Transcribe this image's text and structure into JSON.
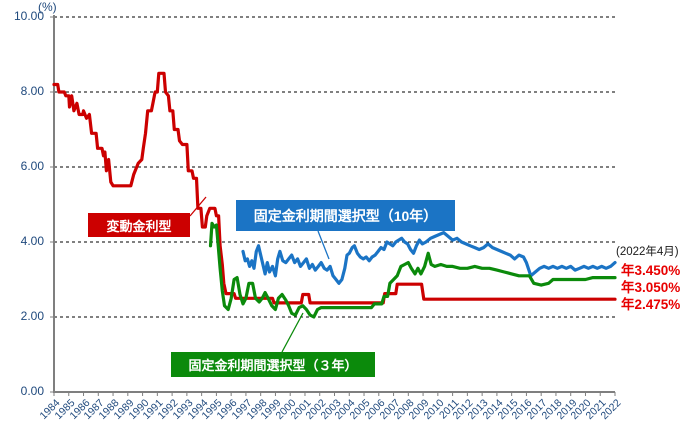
{
  "page": {
    "background": "#FFFFFF"
  },
  "chart_data": {
    "type": "line",
    "title": "",
    "unit_label": "(%)",
    "as_of_label": "(2022年4月)",
    "x_min": 1984,
    "x_max": 2022,
    "ylim": [
      0,
      10
    ],
    "y_ticks": [
      "10.00",
      "8.00",
      "6.00",
      "4.00",
      "2.00",
      "0.00"
    ],
    "gridline_values": [
      2,
      4,
      6,
      8,
      10
    ],
    "x_ticks": [
      1984,
      1985,
      1986,
      1987,
      1988,
      1989,
      1990,
      1991,
      1992,
      1993,
      1994,
      1995,
      1996,
      1997,
      1998,
      1999,
      2000,
      2001,
      2002,
      2003,
      2004,
      2005,
      2006,
      2007,
      2008,
      2009,
      2010,
      2011,
      2012,
      2013,
      2014,
      2015,
      2016,
      2017,
      2018,
      2019,
      2020,
      2021,
      2022
    ],
    "grid": "dashed-horizontal",
    "legend_position": "callout-boxes",
    "colors": {
      "axis_label": "#1F497D",
      "axis_line": "#7F7F7F",
      "gridline": "#000000",
      "end_label": "#E80000",
      "note": "#1A1A1A"
    },
    "series": [
      {
        "name": "variable-rate",
        "label": "変動金利型",
        "color": "#CC0000",
        "end_label": "年2.475%",
        "end_value": 2.475,
        "points": [
          [
            1984.0,
            8.2
          ],
          [
            1984.25,
            8.2
          ],
          [
            1984.33,
            8.0
          ],
          [
            1984.7,
            8.0
          ],
          [
            1984.8,
            7.9
          ],
          [
            1985.0,
            7.9
          ],
          [
            1985.05,
            7.6
          ],
          [
            1985.2,
            7.9
          ],
          [
            1985.35,
            7.5
          ],
          [
            1985.55,
            7.7
          ],
          [
            1985.7,
            7.4
          ],
          [
            1985.95,
            7.4
          ],
          [
            1986.0,
            7.5
          ],
          [
            1986.2,
            7.3
          ],
          [
            1986.4,
            7.4
          ],
          [
            1986.55,
            6.9
          ],
          [
            1986.85,
            6.9
          ],
          [
            1986.95,
            6.5
          ],
          [
            1987.25,
            6.5
          ],
          [
            1987.35,
            6.3
          ],
          [
            1987.45,
            6.4
          ],
          [
            1987.55,
            5.9
          ],
          [
            1987.7,
            6.2
          ],
          [
            1987.85,
            5.6
          ],
          [
            1988.0,
            5.5
          ],
          [
            1989.2,
            5.5
          ],
          [
            1989.4,
            5.8
          ],
          [
            1989.7,
            6.1
          ],
          [
            1989.95,
            6.2
          ],
          [
            1990.05,
            6.5
          ],
          [
            1990.2,
            6.9
          ],
          [
            1990.35,
            7.5
          ],
          [
            1990.6,
            7.5
          ],
          [
            1990.7,
            7.7
          ],
          [
            1990.85,
            8.0
          ],
          [
            1991.0,
            8.0
          ],
          [
            1991.1,
            8.5
          ],
          [
            1991.45,
            8.5
          ],
          [
            1991.55,
            8.0
          ],
          [
            1991.75,
            7.9
          ],
          [
            1991.85,
            7.5
          ],
          [
            1992.05,
            7.5
          ],
          [
            1992.15,
            7.0
          ],
          [
            1992.4,
            7.0
          ],
          [
            1992.5,
            6.7
          ],
          [
            1992.7,
            6.6
          ],
          [
            1993.0,
            6.6
          ],
          [
            1993.1,
            5.9
          ],
          [
            1993.35,
            5.9
          ],
          [
            1993.45,
            5.7
          ],
          [
            1993.65,
            5.7
          ],
          [
            1993.75,
            4.9
          ],
          [
            1993.95,
            4.9
          ],
          [
            1994.05,
            4.4
          ],
          [
            1994.25,
            4.4
          ],
          [
            1994.35,
            4.7
          ],
          [
            1994.55,
            4.9
          ],
          [
            1994.9,
            4.9
          ],
          [
            1995.0,
            4.7
          ],
          [
            1995.15,
            4.7
          ],
          [
            1995.25,
            3.9
          ],
          [
            1995.4,
            3.4
          ],
          [
            1995.5,
            2.9
          ],
          [
            1995.65,
            2.625
          ],
          [
            1996.2,
            2.625
          ],
          [
            1996.3,
            2.5
          ],
          [
            1998.8,
            2.5
          ],
          [
            1998.9,
            2.375
          ],
          [
            2000.75,
            2.375
          ],
          [
            2000.85,
            2.6
          ],
          [
            2001.25,
            2.6
          ],
          [
            2001.35,
            2.375
          ],
          [
            2006.3,
            2.375
          ],
          [
            2006.4,
            2.625
          ],
          [
            2007.15,
            2.625
          ],
          [
            2007.25,
            2.875
          ],
          [
            2008.9,
            2.875
          ],
          [
            2009.05,
            2.475
          ],
          [
            2022.0,
            2.475
          ]
        ]
      },
      {
        "name": "fixed-period-10yr",
        "label": "固定金利期間選択型（10年）",
        "color": "#1B74C5",
        "end_label": "年3.450%",
        "end_value": 3.45,
        "points": [
          [
            1996.8,
            3.75
          ],
          [
            1996.95,
            3.5
          ],
          [
            1997.1,
            3.55
          ],
          [
            1997.25,
            3.35
          ],
          [
            1997.4,
            3.5
          ],
          [
            1997.55,
            3.3
          ],
          [
            1997.7,
            3.75
          ],
          [
            1997.85,
            3.9
          ],
          [
            1998.0,
            3.65
          ],
          [
            1998.15,
            3.4
          ],
          [
            1998.3,
            3.15
          ],
          [
            1998.45,
            3.45
          ],
          [
            1998.6,
            3.2
          ],
          [
            1998.8,
            3.35
          ],
          [
            1999.0,
            3.1
          ],
          [
            1999.15,
            3.55
          ],
          [
            1999.3,
            3.75
          ],
          [
            1999.5,
            3.5
          ],
          [
            1999.7,
            3.45
          ],
          [
            1999.9,
            3.55
          ],
          [
            2000.1,
            3.65
          ],
          [
            2000.3,
            3.45
          ],
          [
            2000.5,
            3.55
          ],
          [
            2000.7,
            3.35
          ],
          [
            2000.9,
            3.45
          ],
          [
            2001.1,
            3.55
          ],
          [
            2001.3,
            3.3
          ],
          [
            2001.5,
            3.4
          ],
          [
            2001.7,
            3.25
          ],
          [
            2001.9,
            3.35
          ],
          [
            2002.1,
            3.45
          ],
          [
            2002.3,
            3.3
          ],
          [
            2002.5,
            3.25
          ],
          [
            2002.7,
            3.35
          ],
          [
            2002.9,
            3.1
          ],
          [
            2003.1,
            3.0
          ],
          [
            2003.3,
            2.9
          ],
          [
            2003.5,
            3.0
          ],
          [
            2003.7,
            3.3
          ],
          [
            2003.85,
            3.65
          ],
          [
            2004.0,
            3.7
          ],
          [
            2004.2,
            3.85
          ],
          [
            2004.35,
            3.9
          ],
          [
            2004.55,
            3.7
          ],
          [
            2004.75,
            3.6
          ],
          [
            2004.95,
            3.55
          ],
          [
            2005.15,
            3.6
          ],
          [
            2005.35,
            3.5
          ],
          [
            2005.55,
            3.6
          ],
          [
            2005.75,
            3.65
          ],
          [
            2005.95,
            3.75
          ],
          [
            2006.15,
            3.85
          ],
          [
            2006.35,
            3.8
          ],
          [
            2006.55,
            4.0
          ],
          [
            2006.75,
            3.95
          ],
          [
            2006.95,
            3.9
          ],
          [
            2007.15,
            4.0
          ],
          [
            2007.35,
            4.05
          ],
          [
            2007.55,
            4.1
          ],
          [
            2007.75,
            4.0
          ],
          [
            2007.95,
            3.95
          ],
          [
            2008.15,
            3.8
          ],
          [
            2008.35,
            3.7
          ],
          [
            2008.55,
            3.9
          ],
          [
            2008.75,
            4.05
          ],
          [
            2008.95,
            3.95
          ],
          [
            2009.2,
            4.0
          ],
          [
            2009.5,
            4.1
          ],
          [
            2009.8,
            4.15
          ],
          [
            2010.1,
            4.2
          ],
          [
            2010.4,
            4.25
          ],
          [
            2010.7,
            4.15
          ],
          [
            2011.0,
            4.05
          ],
          [
            2011.3,
            4.1
          ],
          [
            2011.6,
            4.0
          ],
          [
            2011.9,
            3.95
          ],
          [
            2012.2,
            3.9
          ],
          [
            2012.5,
            3.85
          ],
          [
            2012.8,
            3.8
          ],
          [
            2013.1,
            3.85
          ],
          [
            2013.4,
            3.95
          ],
          [
            2013.7,
            3.85
          ],
          [
            2014.0,
            3.8
          ],
          [
            2014.3,
            3.75
          ],
          [
            2014.6,
            3.7
          ],
          [
            2014.9,
            3.65
          ],
          [
            2015.2,
            3.55
          ],
          [
            2015.5,
            3.65
          ],
          [
            2015.8,
            3.6
          ],
          [
            2016.0,
            3.45
          ],
          [
            2016.3,
            3.1
          ],
          [
            2016.6,
            3.2
          ],
          [
            2016.9,
            3.3
          ],
          [
            2017.2,
            3.35
          ],
          [
            2017.5,
            3.3
          ],
          [
            2017.8,
            3.35
          ],
          [
            2018.1,
            3.3
          ],
          [
            2018.4,
            3.35
          ],
          [
            2018.7,
            3.3
          ],
          [
            2019.0,
            3.35
          ],
          [
            2019.3,
            3.25
          ],
          [
            2019.6,
            3.3
          ],
          [
            2019.9,
            3.35
          ],
          [
            2020.2,
            3.3
          ],
          [
            2020.5,
            3.35
          ],
          [
            2020.8,
            3.3
          ],
          [
            2021.1,
            3.35
          ],
          [
            2021.4,
            3.3
          ],
          [
            2021.7,
            3.35
          ],
          [
            2022.0,
            3.45
          ]
        ]
      },
      {
        "name": "fixed-period-3yr",
        "label": "固定金利期間選択型（３年）",
        "color": "#0B8A0B",
        "end_label": "年3.050%",
        "end_value": 3.05,
        "points": [
          [
            1994.6,
            3.9
          ],
          [
            1994.7,
            4.5
          ],
          [
            1994.85,
            4.4
          ],
          [
            1995.0,
            4.45
          ],
          [
            1995.1,
            4.0
          ],
          [
            1995.25,
            3.3
          ],
          [
            1995.4,
            2.7
          ],
          [
            1995.55,
            2.3
          ],
          [
            1995.8,
            2.2
          ],
          [
            1996.0,
            2.5
          ],
          [
            1996.2,
            3.0
          ],
          [
            1996.4,
            3.05
          ],
          [
            1996.6,
            2.6
          ],
          [
            1996.8,
            2.35
          ],
          [
            1997.0,
            2.5
          ],
          [
            1997.2,
            2.9
          ],
          [
            1997.45,
            2.9
          ],
          [
            1997.65,
            2.5
          ],
          [
            1997.9,
            2.4
          ],
          [
            1998.1,
            2.5
          ],
          [
            1998.3,
            2.65
          ],
          [
            1998.5,
            2.5
          ],
          [
            1998.75,
            2.3
          ],
          [
            1999.0,
            2.2
          ],
          [
            1999.2,
            2.5
          ],
          [
            1999.45,
            2.6
          ],
          [
            1999.7,
            2.45
          ],
          [
            1999.9,
            2.3
          ],
          [
            2000.1,
            2.1
          ],
          [
            2000.35,
            2.05
          ],
          [
            2000.6,
            2.25
          ],
          [
            2000.85,
            2.3
          ],
          [
            2001.1,
            2.2
          ],
          [
            2001.35,
            2.05
          ],
          [
            2001.6,
            2.0
          ],
          [
            2001.85,
            2.2
          ],
          [
            2002.1,
            2.25
          ],
          [
            2005.5,
            2.25
          ],
          [
            2005.7,
            2.35
          ],
          [
            2006.2,
            2.35
          ],
          [
            2006.35,
            2.55
          ],
          [
            2006.6,
            2.55
          ],
          [
            2006.75,
            2.9
          ],
          [
            2007.0,
            3.0
          ],
          [
            2007.25,
            3.1
          ],
          [
            2007.5,
            3.35
          ],
          [
            2007.75,
            3.4
          ],
          [
            2008.0,
            3.45
          ],
          [
            2008.2,
            3.3
          ],
          [
            2008.45,
            3.15
          ],
          [
            2008.65,
            3.3
          ],
          [
            2008.85,
            3.15
          ],
          [
            2009.1,
            3.35
          ],
          [
            2009.35,
            3.7
          ],
          [
            2009.55,
            3.4
          ],
          [
            2009.8,
            3.35
          ],
          [
            2010.2,
            3.4
          ],
          [
            2010.6,
            3.35
          ],
          [
            2011.0,
            3.35
          ],
          [
            2011.5,
            3.3
          ],
          [
            2012.0,
            3.3
          ],
          [
            2012.5,
            3.35
          ],
          [
            2013.0,
            3.3
          ],
          [
            2013.5,
            3.3
          ],
          [
            2014.0,
            3.25
          ],
          [
            2014.5,
            3.2
          ],
          [
            2015.0,
            3.15
          ],
          [
            2015.5,
            3.1
          ],
          [
            2016.2,
            3.1
          ],
          [
            2016.5,
            2.9
          ],
          [
            2017.0,
            2.85
          ],
          [
            2017.5,
            2.9
          ],
          [
            2017.8,
            3.0
          ],
          [
            2018.2,
            3.0
          ],
          [
            2019.0,
            3.0
          ],
          [
            2020.0,
            3.0
          ],
          [
            2020.5,
            3.05
          ],
          [
            2022.0,
            3.05
          ]
        ]
      }
    ]
  }
}
